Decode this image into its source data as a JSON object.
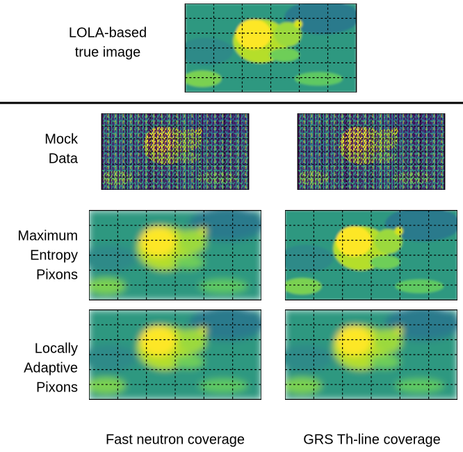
{
  "top_label": [
    "LOLA-based",
    "true image"
  ],
  "row_labels": [
    [
      "Mock",
      "Data"
    ],
    [
      "Maximum",
      "Entropy",
      "Pixons"
    ],
    [
      "Locally",
      "Adaptive",
      "Pixons"
    ]
  ],
  "column_labels": [
    "Fast neutron coverage",
    "GRS Th-line coverage"
  ]
}
